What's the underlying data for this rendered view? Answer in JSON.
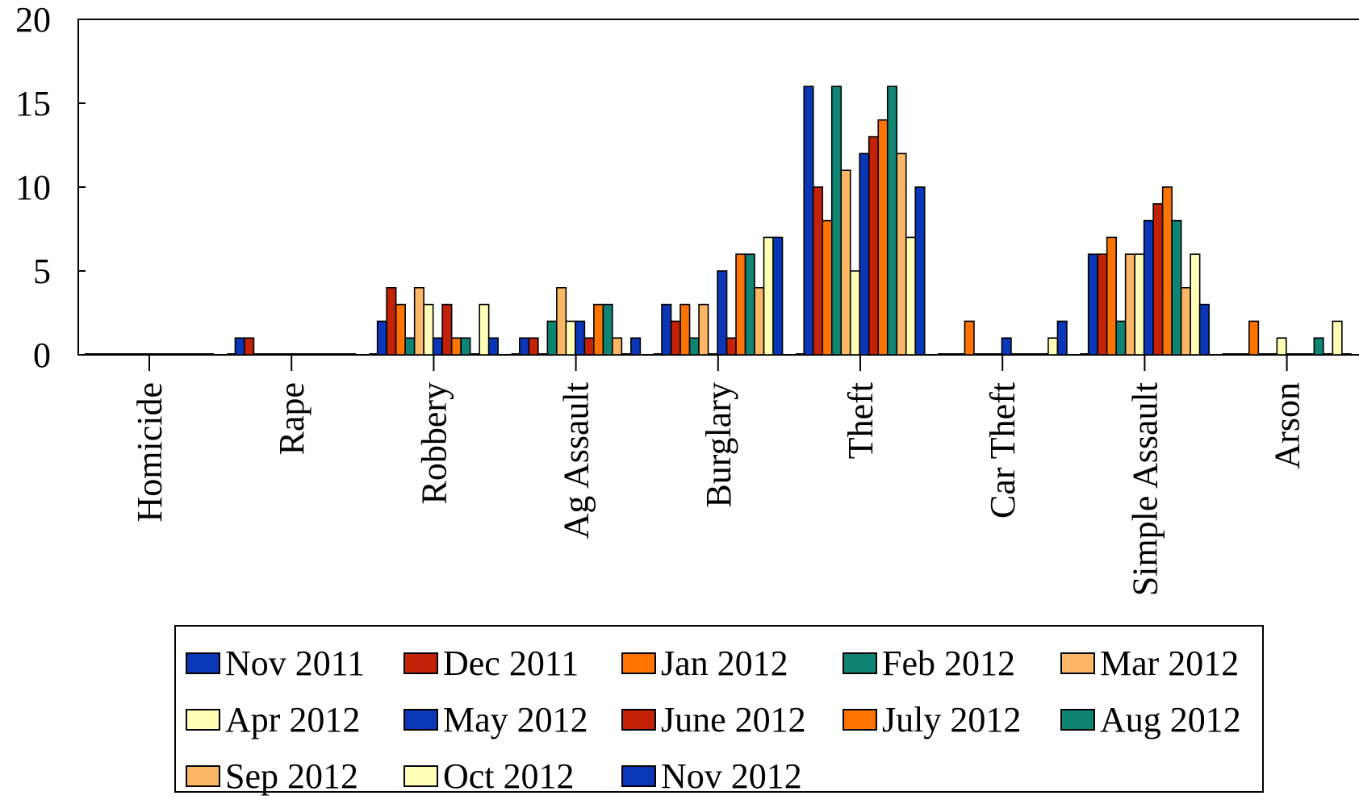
{
  "chart_data": {
    "type": "bar",
    "title": "",
    "xlabel": "",
    "ylabel": "",
    "ylim": [
      0,
      20
    ],
    "yticks": [
      "0",
      "5",
      "10",
      "15",
      "20"
    ],
    "grid": false,
    "legend_position": "bottom",
    "categories": [
      "Homicide",
      "Rape",
      "Robbery",
      "Ag Assault",
      "Burglary",
      "Theft",
      "Car Theft",
      "Simple Assault",
      "Arson"
    ],
    "series": [
      {
        "name": "Nov 2011",
        "color": "#0a37b8",
        "values": [
          0,
          1,
          2,
          1,
          3,
          16,
          0,
          6,
          0
        ]
      },
      {
        "name": "Dec 2011",
        "color": "#c42207",
        "values": [
          0,
          1,
          4,
          1,
          2,
          10,
          0,
          6,
          0
        ]
      },
      {
        "name": "Jan 2012",
        "color": "#ff7400",
        "values": [
          0,
          0,
          3,
          0,
          3,
          8,
          2,
          7,
          2
        ]
      },
      {
        "name": "Feb 2012",
        "color": "#0f8475",
        "values": [
          0,
          0,
          1,
          2,
          1,
          16,
          0,
          2,
          0
        ]
      },
      {
        "name": "Mar 2012",
        "color": "#fcb766",
        "values": [
          0,
          0,
          4,
          4,
          3,
          11,
          0,
          6,
          0
        ]
      },
      {
        "name": "Apr 2012",
        "color": "#ffffb5",
        "values": [
          0,
          0,
          3,
          2,
          0,
          5,
          0,
          6,
          1
        ]
      },
      {
        "name": "May 2012",
        "color": "#0a37b8",
        "values": [
          0,
          0,
          1,
          2,
          5,
          12,
          1,
          8,
          0
        ]
      },
      {
        "name": "June 2012",
        "color": "#c42207",
        "values": [
          0,
          0,
          3,
          1,
          1,
          13,
          0,
          9,
          0
        ]
      },
      {
        "name": "July 2012",
        "color": "#ff7400",
        "values": [
          0,
          0,
          1,
          3,
          6,
          14,
          0,
          10,
          0
        ]
      },
      {
        "name": "Aug 2012",
        "color": "#0f8475",
        "values": [
          0,
          0,
          1,
          3,
          6,
          16,
          0,
          8,
          1
        ]
      },
      {
        "name": "Sep 2012",
        "color": "#fcb766",
        "values": [
          0,
          0,
          0,
          1,
          4,
          12,
          0,
          4,
          0
        ]
      },
      {
        "name": "Oct 2012",
        "color": "#ffffb5",
        "values": [
          0,
          0,
          3,
          0,
          7,
          7,
          1,
          6,
          2
        ]
      },
      {
        "name": "Nov 2012",
        "color": "#0a37b8",
        "values": [
          0,
          0,
          1,
          1,
          7,
          10,
          2,
          3,
          0
        ]
      }
    ]
  }
}
